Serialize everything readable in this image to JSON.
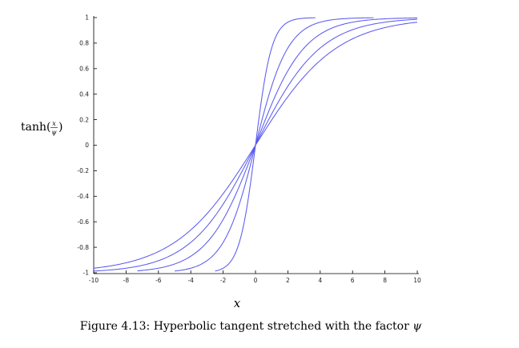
{
  "chart_data": {
    "type": "line",
    "function": "tanh(x/ψ)",
    "xlim": [
      -10,
      10
    ],
    "ylim": [
      -1,
      1
    ],
    "x_ticks": [
      "-10",
      "-8",
      "-6",
      "-4",
      "-2",
      "0",
      "2",
      "4",
      "6",
      "8",
      "10"
    ],
    "y_ticks": [
      "1",
      "0.8",
      "0.6",
      "0.4",
      "0.2",
      "0",
      "-0.2",
      "-0.4",
      "-0.6",
      "-0.8",
      "-1"
    ],
    "series": [
      {
        "psi": 1,
        "x_range": [
          -2.5,
          3.7
        ]
      },
      {
        "psi": 2,
        "x_range": [
          -5.0,
          7.3
        ]
      },
      {
        "psi": 3,
        "x_range": [
          -7.3,
          10
        ]
      },
      {
        "psi": 4,
        "x_range": [
          -10,
          10
        ]
      },
      {
        "psi": 5,
        "x_range": [
          -10,
          10
        ]
      }
    ],
    "ylabel": {
      "prefix": "tanh(",
      "numerator": "x",
      "denominator": "ψ",
      "suffix": ")"
    },
    "xlabel": "x",
    "grid": false,
    "line_color": "#5b5bf0"
  },
  "caption": {
    "text": "Figure 4.13: Hyperbolic tangent stretched with the factor ",
    "symbol": "ψ"
  }
}
